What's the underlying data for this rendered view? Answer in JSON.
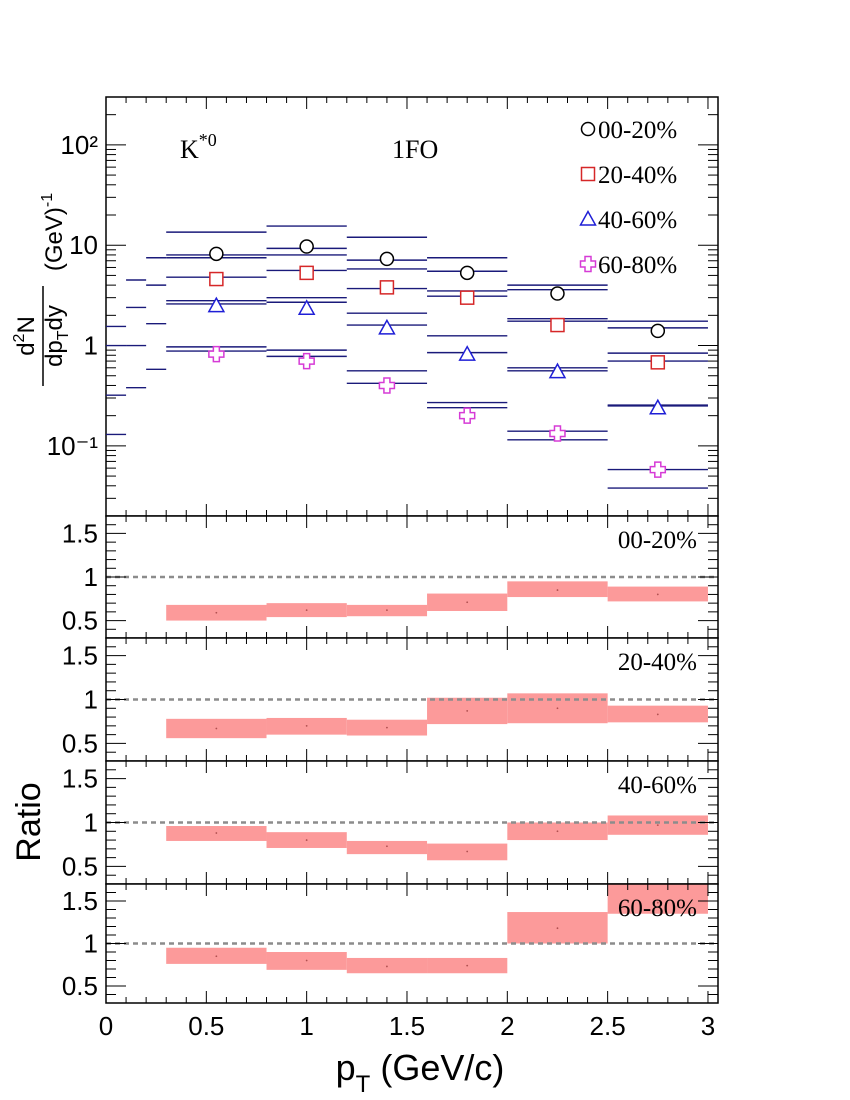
{
  "chart_data": [
    {
      "type": "scatter",
      "panel": "spectra",
      "x_scale": "linear",
      "y_scale": "log",
      "xlim": [
        0,
        3.05
      ],
      "ylim": [
        0.02,
        300
      ],
      "ylabel": "d²N/dp_T dy (GeV)⁻¹",
      "particle_label": "K*0",
      "model_label": "1FO",
      "legend_position": "top-right",
      "y_tick_labels": [
        "10⁻¹",
        "1",
        "10",
        "10²"
      ],
      "y_tick_values": [
        0.1,
        1,
        10,
        100
      ],
      "series": [
        {
          "name": "00-20%",
          "marker": "circle",
          "color": "#000000",
          "x": [
            0.55,
            1.0,
            1.4,
            1.8,
            2.25,
            2.75
          ],
          "y": [
            8.2,
            9.7,
            7.3,
            5.3,
            3.3,
            1.4
          ]
        },
        {
          "name": "20-40%",
          "marker": "square",
          "color": "#d62728",
          "x": [
            0.55,
            1.0,
            1.4,
            1.8,
            2.25,
            2.75
          ],
          "y": [
            4.6,
            5.3,
            3.8,
            3.0,
            1.6,
            0.68
          ]
        },
        {
          "name": "40-60%",
          "marker": "triangle",
          "color": "#1f1fd6",
          "x": [
            0.55,
            1.0,
            1.4,
            1.8,
            2.25,
            2.75
          ],
          "y": [
            2.5,
            2.35,
            1.5,
            0.82,
            0.55,
            0.24
          ]
        },
        {
          "name": "60-80%",
          "marker": "cross",
          "color": "#d63bd6",
          "x": [
            0.55,
            1.0,
            1.4,
            1.8,
            2.25,
            2.75
          ],
          "y": [
            0.82,
            0.7,
            0.4,
            0.2,
            0.133,
            0.058
          ]
        }
      ],
      "model_bins": [
        {
          "x0": 0.0,
          "x1": 0.1,
          "values": [
            1.55,
            1.0,
            0.32,
            0.13
          ]
        },
        {
          "x0": 0.1,
          "x1": 0.2,
          "values": [
            4.5,
            2.4,
            1.0,
            0.38
          ]
        },
        {
          "x0": 0.2,
          "x1": 0.3,
          "values": [
            7.5,
            4.0,
            1.65,
            0.58
          ]
        },
        {
          "x0": 0.3,
          "x1": 0.8,
          "values": [
            13.5,
            7.5,
            2.8,
            0.97
          ]
        },
        {
          "x0": 0.3,
          "x1": 0.8,
          "values": [
            8.0,
            4.8,
            2.6,
            0.88
          ]
        },
        {
          "x0": 0.8,
          "x1": 1.2,
          "values": [
            15.5,
            8.0,
            3.0,
            0.9
          ]
        },
        {
          "x0": 0.8,
          "x1": 1.2,
          "values": [
            9.3,
            5.6,
            2.7,
            0.78
          ]
        },
        {
          "x0": 1.2,
          "x1": 1.6,
          "values": [
            12.0,
            5.8,
            2.1,
            0.56
          ]
        },
        {
          "x0": 1.2,
          "x1": 1.6,
          "values": [
            7.1,
            3.7,
            1.6,
            0.42
          ]
        },
        {
          "x0": 1.6,
          "x1": 2.0,
          "values": [
            7.5,
            3.5,
            1.25,
            0.27
          ]
        },
        {
          "x0": 1.6,
          "x1": 2.0,
          "values": [
            5.5,
            3.1,
            0.85,
            0.24
          ]
        },
        {
          "x0": 2.0,
          "x1": 2.5,
          "values": [
            4.0,
            1.85,
            0.6,
            0.14
          ]
        },
        {
          "x0": 2.0,
          "x1": 2.5,
          "values": [
            3.6,
            1.75,
            0.56,
            0.115
          ]
        },
        {
          "x0": 2.5,
          "x1": 3.0,
          "values": [
            1.75,
            0.84,
            0.255,
            0.058
          ]
        },
        {
          "x0": 2.5,
          "x1": 3.0,
          "values": [
            1.5,
            0.7,
            0.25,
            0.038
          ]
        }
      ]
    },
    {
      "type": "bar",
      "panel": "ratio",
      "label": "00-20%",
      "ylim": [
        0.3,
        1.7
      ],
      "reference_line": 1,
      "y_tick_labels": [
        "0.5",
        "1",
        "1.5"
      ],
      "y_tick_values": [
        0.5,
        1,
        1.5
      ],
      "bins": [
        {
          "x0": 0.3,
          "x1": 0.8,
          "y": 0.59,
          "low": 0.5,
          "high": 0.68
        },
        {
          "x0": 0.8,
          "x1": 1.2,
          "y": 0.62,
          "low": 0.54,
          "high": 0.7
        },
        {
          "x0": 1.2,
          "x1": 1.6,
          "y": 0.62,
          "low": 0.55,
          "high": 0.68
        },
        {
          "x0": 1.6,
          "x1": 2.0,
          "y": 0.71,
          "low": 0.61,
          "high": 0.81
        },
        {
          "x0": 2.0,
          "x1": 2.5,
          "y": 0.85,
          "low": 0.77,
          "high": 0.95
        },
        {
          "x0": 2.5,
          "x1": 3.0,
          "y": 0.8,
          "low": 0.72,
          "high": 0.89
        }
      ]
    },
    {
      "type": "bar",
      "panel": "ratio",
      "label": "20-40%",
      "ylim": [
        0.3,
        1.7
      ],
      "reference_line": 1,
      "y_tick_labels": [
        "0.5",
        "1",
        "1.5"
      ],
      "y_tick_values": [
        0.5,
        1,
        1.5
      ],
      "bins": [
        {
          "x0": 0.3,
          "x1": 0.8,
          "y": 0.67,
          "low": 0.56,
          "high": 0.78
        },
        {
          "x0": 0.8,
          "x1": 1.2,
          "y": 0.7,
          "low": 0.6,
          "high": 0.79
        },
        {
          "x0": 1.2,
          "x1": 1.6,
          "y": 0.68,
          "low": 0.59,
          "high": 0.77
        },
        {
          "x0": 1.6,
          "x1": 2.0,
          "y": 0.87,
          "low": 0.72,
          "high": 1.02
        },
        {
          "x0": 2.0,
          "x1": 2.5,
          "y": 0.9,
          "low": 0.73,
          "high": 1.07
        },
        {
          "x0": 2.5,
          "x1": 3.0,
          "y": 0.83,
          "low": 0.74,
          "high": 0.93
        }
      ]
    },
    {
      "type": "bar",
      "panel": "ratio",
      "label": "40-60%",
      "ylim": [
        0.3,
        1.7
      ],
      "reference_line": 1,
      "y_tick_labels": [
        "0.5",
        "1",
        "1.5"
      ],
      "y_tick_values": [
        0.5,
        1,
        1.5
      ],
      "bins": [
        {
          "x0": 0.3,
          "x1": 0.8,
          "y": 0.88,
          "low": 0.79,
          "high": 0.96
        },
        {
          "x0": 0.8,
          "x1": 1.2,
          "y": 0.8,
          "low": 0.71,
          "high": 0.89
        },
        {
          "x0": 1.2,
          "x1": 1.6,
          "y": 0.73,
          "low": 0.64,
          "high": 0.79
        },
        {
          "x0": 1.6,
          "x1": 2.0,
          "y": 0.67,
          "low": 0.57,
          "high": 0.76
        },
        {
          "x0": 2.0,
          "x1": 2.5,
          "y": 0.9,
          "low": 0.8,
          "high": 1.0
        },
        {
          "x0": 2.5,
          "x1": 3.0,
          "y": 0.97,
          "low": 0.86,
          "high": 1.08
        }
      ]
    },
    {
      "type": "bar",
      "panel": "ratio",
      "label": "60-80%",
      "ylim": [
        0.3,
        1.7
      ],
      "reference_line": 1,
      "y_tick_labels": [
        "0.5",
        "1",
        "1.5"
      ],
      "y_tick_values": [
        0.5,
        1,
        1.5
      ],
      "bins": [
        {
          "x0": 0.3,
          "x1": 0.8,
          "y": 0.85,
          "low": 0.76,
          "high": 0.95
        },
        {
          "x0": 0.8,
          "x1": 1.2,
          "y": 0.8,
          "low": 0.69,
          "high": 0.9
        },
        {
          "x0": 1.2,
          "x1": 1.6,
          "y": 0.73,
          "low": 0.65,
          "high": 0.83
        },
        {
          "x0": 1.6,
          "x1": 2.0,
          "y": 0.74,
          "low": 0.65,
          "high": 0.83
        },
        {
          "x0": 2.0,
          "x1": 2.5,
          "y": 1.18,
          "low": 1.0,
          "high": 1.37
        },
        {
          "x0": 2.5,
          "x1": 3.0,
          "y": 1.48,
          "low": 1.35,
          "high": 1.7
        }
      ]
    }
  ],
  "shared": {
    "xlim": [
      0,
      3.05
    ],
    "x_tick_values": [
      0,
      0.5,
      1,
      1.5,
      2,
      2.5,
      3
    ],
    "x_tick_labels": [
      "0",
      "0.5",
      "1",
      "1.5",
      "2",
      "2.5",
      "3"
    ],
    "xlabel": "p_T (GeV/c)",
    "ratio_ylabel": "Ratio",
    "band_color": "#fc9a9a",
    "reference_line_color": "#8c8c8c",
    "model_line_color": "#1a1a7a"
  }
}
